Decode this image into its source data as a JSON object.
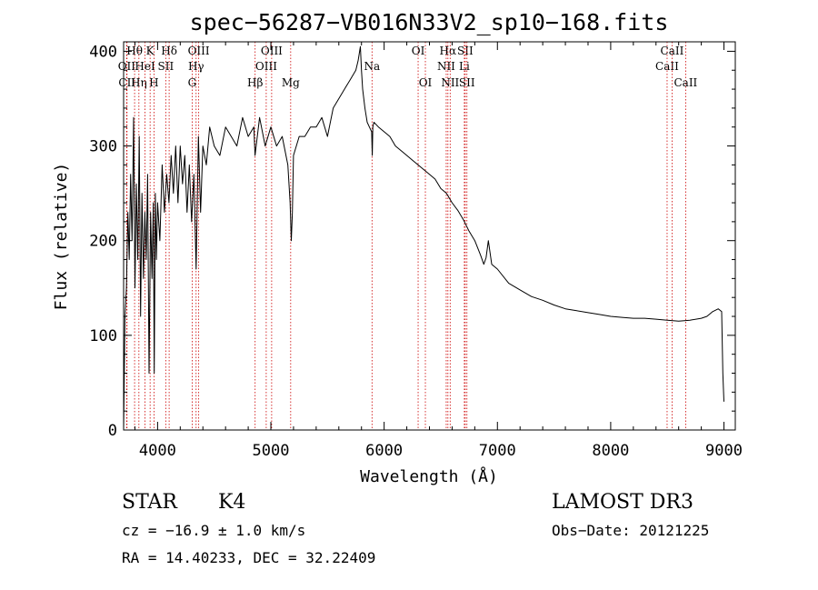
{
  "chart_data": {
    "type": "line",
    "title": "spec−56287−VB016N33V2_sp10−168.fits",
    "xlabel": "Wavelength (Å)",
    "ylabel": "Flux (relative)",
    "xlim": [
      3700,
      9100
    ],
    "ylim": [
      0,
      410
    ],
    "xticks": [
      4000,
      5000,
      6000,
      7000,
      8000,
      9000
    ],
    "yticks": [
      0,
      100,
      200,
      300,
      400
    ],
    "series": [
      {
        "name": "flux",
        "x": [
          3700,
          3712,
          3725,
          3738,
          3750,
          3762,
          3775,
          3788,
          3800,
          3812,
          3825,
          3838,
          3850,
          3862,
          3875,
          3888,
          3900,
          3912,
          3925,
          3938,
          3950,
          3962,
          3970,
          3980,
          3990,
          4000,
          4020,
          4040,
          4060,
          4080,
          4100,
          4120,
          4140,
          4160,
          4180,
          4200,
          4220,
          4240,
          4260,
          4280,
          4300,
          4320,
          4340,
          4360,
          4380,
          4400,
          4430,
          4460,
          4500,
          4550,
          4600,
          4650,
          4700,
          4750,
          4800,
          4850,
          4860,
          4880,
          4900,
          4950,
          5000,
          5050,
          5100,
          5150,
          5170,
          5180,
          5190,
          5200,
          5250,
          5300,
          5350,
          5400,
          5450,
          5500,
          5550,
          5600,
          5650,
          5700,
          5750,
          5770,
          5790,
          5800,
          5810,
          5830,
          5850,
          5870,
          5890,
          5895,
          5900,
          5910,
          5950,
          6000,
          6050,
          6100,
          6150,
          6200,
          6250,
          6300,
          6350,
          6400,
          6450,
          6500,
          6550,
          6600,
          6650,
          6700,
          6750,
          6800,
          6850,
          6880,
          6900,
          6920,
          6950,
          7000,
          7100,
          7200,
          7300,
          7400,
          7500,
          7600,
          7700,
          7800,
          7900,
          8000,
          8100,
          8200,
          8300,
          8400,
          8500,
          8600,
          8700,
          8800,
          8850,
          8900,
          8950,
          8980,
          8990,
          9000
        ],
        "y": [
          0,
          120,
          150,
          230,
          180,
          270,
          200,
          330,
          150,
          260,
          180,
          310,
          120,
          250,
          160,
          230,
          180,
          270,
          60,
          230,
          160,
          240,
          60,
          250,
          180,
          240,
          200,
          280,
          230,
          270,
          240,
          290,
          250,
          300,
          240,
          300,
          260,
          290,
          230,
          280,
          220,
          270,
          170,
          310,
          230,
          300,
          280,
          320,
          300,
          290,
          320,
          310,
          300,
          330,
          310,
          320,
          290,
          310,
          330,
          300,
          320,
          300,
          310,
          280,
          240,
          200,
          230,
          290,
          310,
          310,
          320,
          320,
          330,
          310,
          340,
          350,
          360,
          370,
          380,
          390,
          405,
          380,
          360,
          340,
          325,
          320,
          315,
          290,
          320,
          325,
          320,
          315,
          310,
          300,
          295,
          290,
          285,
          280,
          275,
          270,
          265,
          255,
          250,
          240,
          232,
          222,
          210,
          200,
          185,
          175,
          182,
          200,
          175,
          170,
          155,
          148,
          141,
          137,
          132,
          128,
          126,
          124,
          122,
          120,
          119,
          118,
          118,
          117,
          116,
          115,
          116,
          118,
          120,
          125,
          128,
          125,
          60,
          30
        ]
      }
    ],
    "spectral_lines": [
      {
        "label": "Hθ",
        "wavelength": 3797,
        "row": 0
      },
      {
        "label": "OII",
        "wavelength": 3727,
        "row": 1
      },
      {
        "label": "CII",
        "wavelength": 3730,
        "row": 2
      },
      {
        "label": "Hη",
        "wavelength": 3835,
        "row": 2
      },
      {
        "label": "HeI",
        "wavelength": 3889,
        "row": 1
      },
      {
        "label": "K",
        "wavelength": 3934,
        "row": 0
      },
      {
        "label": "H",
        "wavelength": 3968,
        "row": 2
      },
      {
        "label": "SII",
        "wavelength": 4072,
        "row": 1
      },
      {
        "label": "Hδ",
        "wavelength": 4102,
        "row": 0
      },
      {
        "label": "OIII",
        "wavelength": 4363,
        "row": 0
      },
      {
        "label": "Hγ",
        "wavelength": 4340,
        "row": 1
      },
      {
        "label": "G",
        "wavelength": 4305,
        "row": 2
      },
      {
        "label": "Hβ",
        "wavelength": 4861,
        "row": 2
      },
      {
        "label": "OIII",
        "wavelength": 4959,
        "row": 1
      },
      {
        "label": "OIII",
        "wavelength": 5007,
        "row": 0
      },
      {
        "label": "Mg",
        "wavelength": 5175,
        "row": 2
      },
      {
        "label": "Na",
        "wavelength": 5893,
        "row": 1
      },
      {
        "label": "OI",
        "wavelength": 6300,
        "row": 0
      },
      {
        "label": "OI",
        "wavelength": 6364,
        "row": 2
      },
      {
        "label": "NII",
        "wavelength": 6548,
        "row": 1
      },
      {
        "label": "Hα",
        "wavelength": 6563,
        "row": 0
      },
      {
        "label": "NII",
        "wavelength": 6583,
        "row": 2
      },
      {
        "label": "Li",
        "wavelength": 6708,
        "row": 1
      },
      {
        "label": "SII",
        "wavelength": 6716,
        "row": 0
      },
      {
        "label": "SII",
        "wavelength": 6731,
        "row": 2
      },
      {
        "label": "CaII",
        "wavelength": 8498,
        "row": 1
      },
      {
        "label": "CaII",
        "wavelength": 8542,
        "row": 0
      },
      {
        "label": "CaII",
        "wavelength": 8662,
        "row": 2
      }
    ]
  },
  "info": {
    "object_class": "STAR",
    "subclass": "K4",
    "survey": "LAMOST DR3",
    "redshift": "cz = −16.9 ± 1.0 km/s",
    "obs_date": "Obs−Date: 20121225",
    "coords": "RA =  14.40233, DEC =  32.22409"
  },
  "colors": {
    "line_marker": "#cc0000",
    "spectrum": "#000000"
  }
}
